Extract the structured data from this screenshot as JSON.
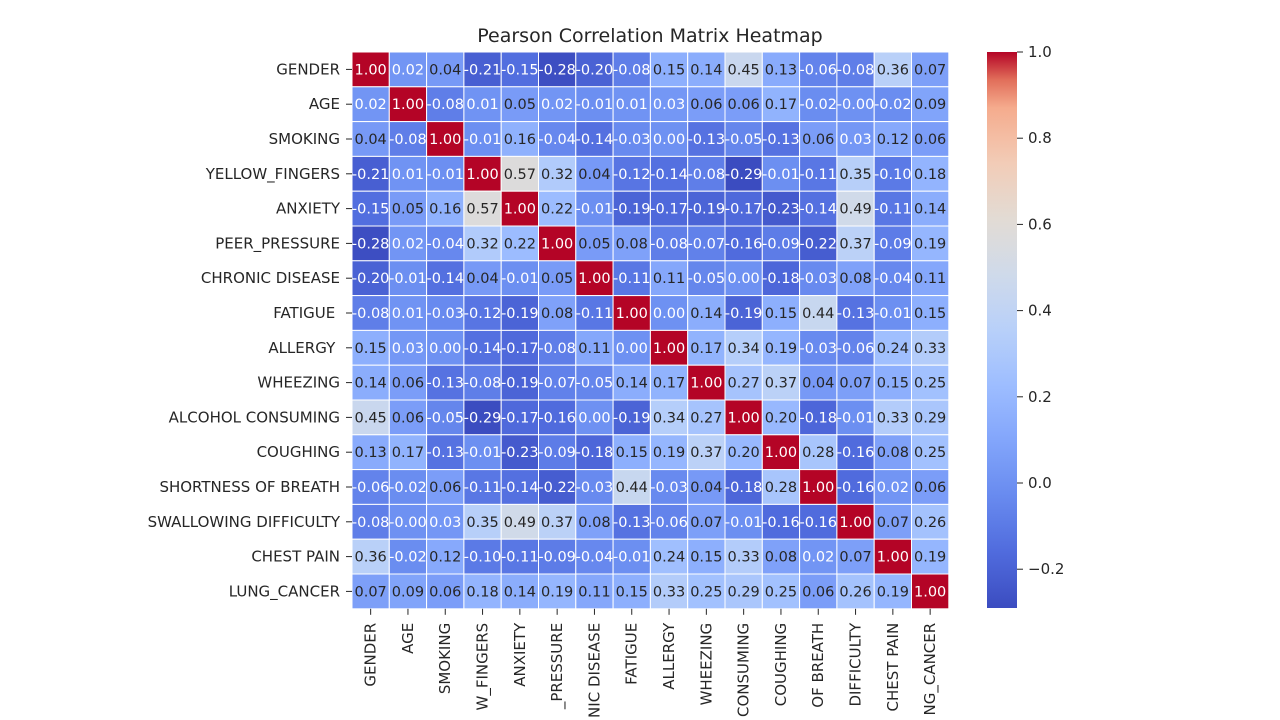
{
  "chart_data": {
    "type": "heatmap",
    "title": "Pearson Correlation Matrix Heatmap",
    "row_labels": [
      "GENDER",
      "AGE",
      "SMOKING",
      "YELLOW_FINGERS",
      "ANXIETY",
      "PEER_PRESSURE",
      "CHRONIC DISEASE",
      "FATIGUE ",
      "ALLERGY ",
      "WHEEZING",
      "ALCOHOL CONSUMING",
      "COUGHING",
      "SHORTNESS OF BREATH",
      "SWALLOWING DIFFICULTY",
      "CHEST PAIN",
      "LUNG_CANCER"
    ],
    "col_labels": [
      "GENDER",
      "AGE",
      "SMOKING",
      "W_FINGERS",
      "ANXIETY",
      "_PRESSURE",
      "NIC DISEASE",
      "FATIGUE",
      "ALLERGY",
      "WHEEZING",
      "CONSUMING",
      "COUGHING",
      "OF BREATH",
      "DIFFICULTY",
      "CHEST PAIN",
      "NG_CANCER"
    ],
    "values": [
      [
        1.0,
        0.02,
        0.04,
        -0.21,
        -0.15,
        -0.28,
        -0.2,
        -0.08,
        0.15,
        0.14,
        0.45,
        0.13,
        -0.06,
        -0.08,
        0.36,
        0.07
      ],
      [
        0.02,
        1.0,
        -0.08,
        0.01,
        0.05,
        0.02,
        -0.01,
        0.01,
        0.03,
        0.06,
        0.06,
        0.17,
        -0.02,
        -0.0,
        -0.02,
        0.09
      ],
      [
        0.04,
        -0.08,
        1.0,
        -0.01,
        0.16,
        -0.04,
        -0.14,
        -0.03,
        0.0,
        -0.13,
        -0.05,
        -0.13,
        0.06,
        0.03,
        0.12,
        0.06
      ],
      [
        -0.21,
        0.01,
        -0.01,
        1.0,
        0.57,
        0.32,
        0.04,
        -0.12,
        -0.14,
        -0.08,
        -0.29,
        -0.01,
        -0.11,
        0.35,
        -0.1,
        0.18
      ],
      [
        -0.15,
        0.05,
        0.16,
        0.57,
        1.0,
        0.22,
        -0.01,
        -0.19,
        -0.17,
        -0.19,
        -0.17,
        -0.23,
        -0.14,
        0.49,
        -0.11,
        0.14
      ],
      [
        -0.28,
        0.02,
        -0.04,
        0.32,
        0.22,
        1.0,
        0.05,
        0.08,
        -0.08,
        -0.07,
        -0.16,
        -0.09,
        -0.22,
        0.37,
        -0.09,
        0.19
      ],
      [
        -0.2,
        -0.01,
        -0.14,
        0.04,
        -0.01,
        0.05,
        1.0,
        -0.11,
        0.11,
        -0.05,
        0.0,
        -0.18,
        -0.03,
        0.08,
        -0.04,
        0.11
      ],
      [
        -0.08,
        0.01,
        -0.03,
        -0.12,
        -0.19,
        0.08,
        -0.11,
        1.0,
        0.0,
        0.14,
        -0.19,
        0.15,
        0.44,
        -0.13,
        -0.01,
        0.15
      ],
      [
        0.15,
        0.03,
        0.0,
        -0.14,
        -0.17,
        -0.08,
        0.11,
        0.0,
        1.0,
        0.17,
        0.34,
        0.19,
        -0.03,
        -0.06,
        0.24,
        0.33
      ],
      [
        0.14,
        0.06,
        -0.13,
        -0.08,
        -0.19,
        -0.07,
        -0.05,
        0.14,
        0.17,
        1.0,
        0.27,
        0.37,
        0.04,
        0.07,
        0.15,
        0.25
      ],
      [
        0.45,
        0.06,
        -0.05,
        -0.29,
        -0.17,
        -0.16,
        0.0,
        -0.19,
        0.34,
        0.27,
        1.0,
        0.2,
        -0.18,
        -0.01,
        0.33,
        0.29
      ],
      [
        0.13,
        0.17,
        -0.13,
        -0.01,
        -0.23,
        -0.09,
        -0.18,
        0.15,
        0.19,
        0.37,
        0.2,
        1.0,
        0.28,
        -0.16,
        0.08,
        0.25
      ],
      [
        -0.06,
        -0.02,
        0.06,
        -0.11,
        -0.14,
        -0.22,
        -0.03,
        0.44,
        -0.03,
        0.04,
        -0.18,
        0.28,
        1.0,
        -0.16,
        0.02,
        0.06
      ],
      [
        -0.08,
        -0.0,
        0.03,
        0.35,
        0.49,
        0.37,
        0.08,
        -0.13,
        -0.06,
        0.07,
        -0.01,
        -0.16,
        -0.16,
        1.0,
        0.07,
        0.26
      ],
      [
        0.36,
        -0.02,
        0.12,
        -0.1,
        -0.11,
        -0.09,
        -0.04,
        -0.01,
        0.24,
        0.15,
        0.33,
        0.08,
        0.02,
        0.07,
        1.0,
        0.19
      ],
      [
        0.07,
        0.09,
        0.06,
        0.18,
        0.14,
        0.19,
        0.11,
        0.15,
        0.33,
        0.25,
        0.29,
        0.25,
        0.06,
        0.26,
        0.19,
        1.0
      ]
    ],
    "colormap": "coolwarm",
    "vmin": -0.29,
    "vmax": 1.0,
    "annot_format": "0.00",
    "colorbar_ticks": [
      1.0,
      0.8,
      0.6,
      0.4,
      0.2,
      0.0,
      -0.2
    ],
    "colorbar_tick_labels": [
      "1.0",
      "0.8",
      "0.6",
      "0.4",
      "0.2",
      "0.0",
      "−0.2"
    ],
    "colorbar_position": "right",
    "colors": {
      "low": "#3b4cc0",
      "mid": "#dddddd",
      "high": "#b40426",
      "text": "#262626",
      "grid": "#ffffff"
    }
  }
}
